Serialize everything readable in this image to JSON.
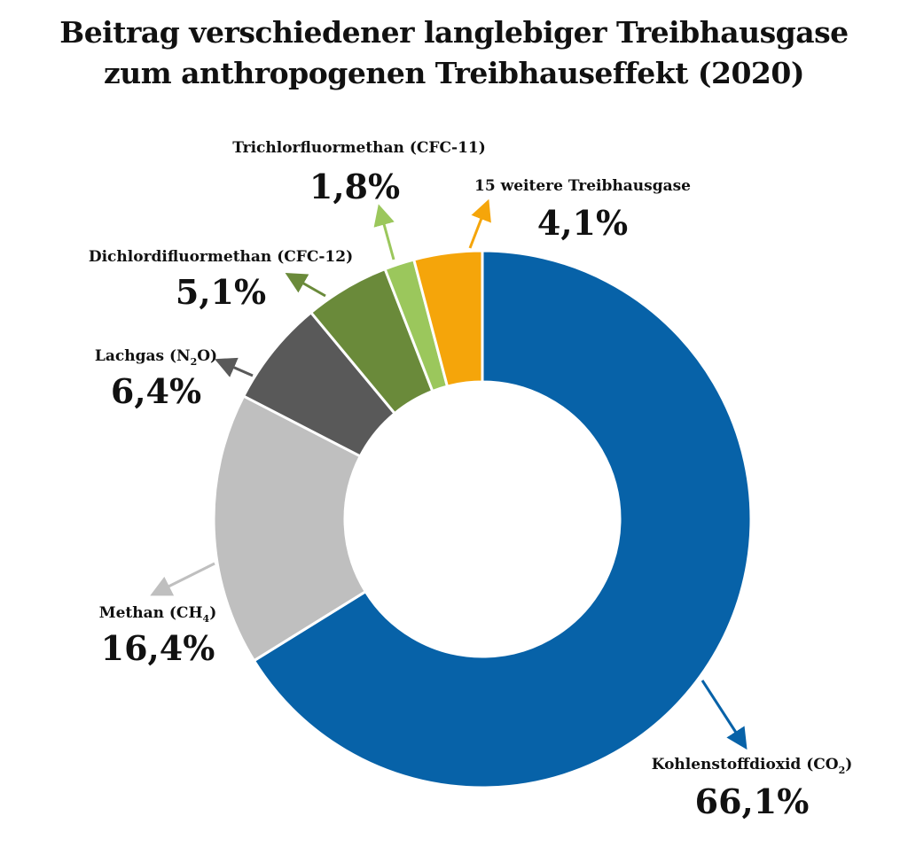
{
  "title": {
    "line1": "Beitrag verschiedener langlebiger Treibhausgase",
    "line2": "zum anthropogenen Treibhauseffekt (2020)"
  },
  "chart_data": {
    "type": "pie",
    "donut": true,
    "title": "Beitrag verschiedener langlebiger Treibhausgase zum anthropogenen Treibhauseffekt (2020)",
    "legend": "none",
    "slices": [
      {
        "key": "co2",
        "label": "Kohlenstoffdioxid (CO",
        "sub": "2",
        "suffix": ")",
        "value": 66.1,
        "display": "66,1%",
        "color": "#0762a8"
      },
      {
        "key": "ch4",
        "label": "Methan (CH",
        "sub": "4",
        "suffix": ")",
        "value": 16.4,
        "display": "16,4%",
        "color": "#bfbfbf"
      },
      {
        "key": "n2o",
        "label": "Lachgas (N",
        "sub": "2",
        "suffix": "O)",
        "value": 6.4,
        "display": "6,4%",
        "color": "#595959"
      },
      {
        "key": "cfc12",
        "label": "Dichlordifluormethan (CFC-12)",
        "sub": "",
        "suffix": "",
        "value": 5.1,
        "display": "5,1%",
        "color": "#6a8a3a"
      },
      {
        "key": "cfc11",
        "label": "Trichlorfluormethan (CFC-11)",
        "sub": "",
        "suffix": "",
        "value": 1.8,
        "display": "1,8%",
        "color": "#9bc75c"
      },
      {
        "key": "other",
        "label": "15 weitere Treibhausgase",
        "sub": "",
        "suffix": "",
        "value": 4.1,
        "display": "4,1%",
        "color": "#f5a50a"
      }
    ]
  }
}
